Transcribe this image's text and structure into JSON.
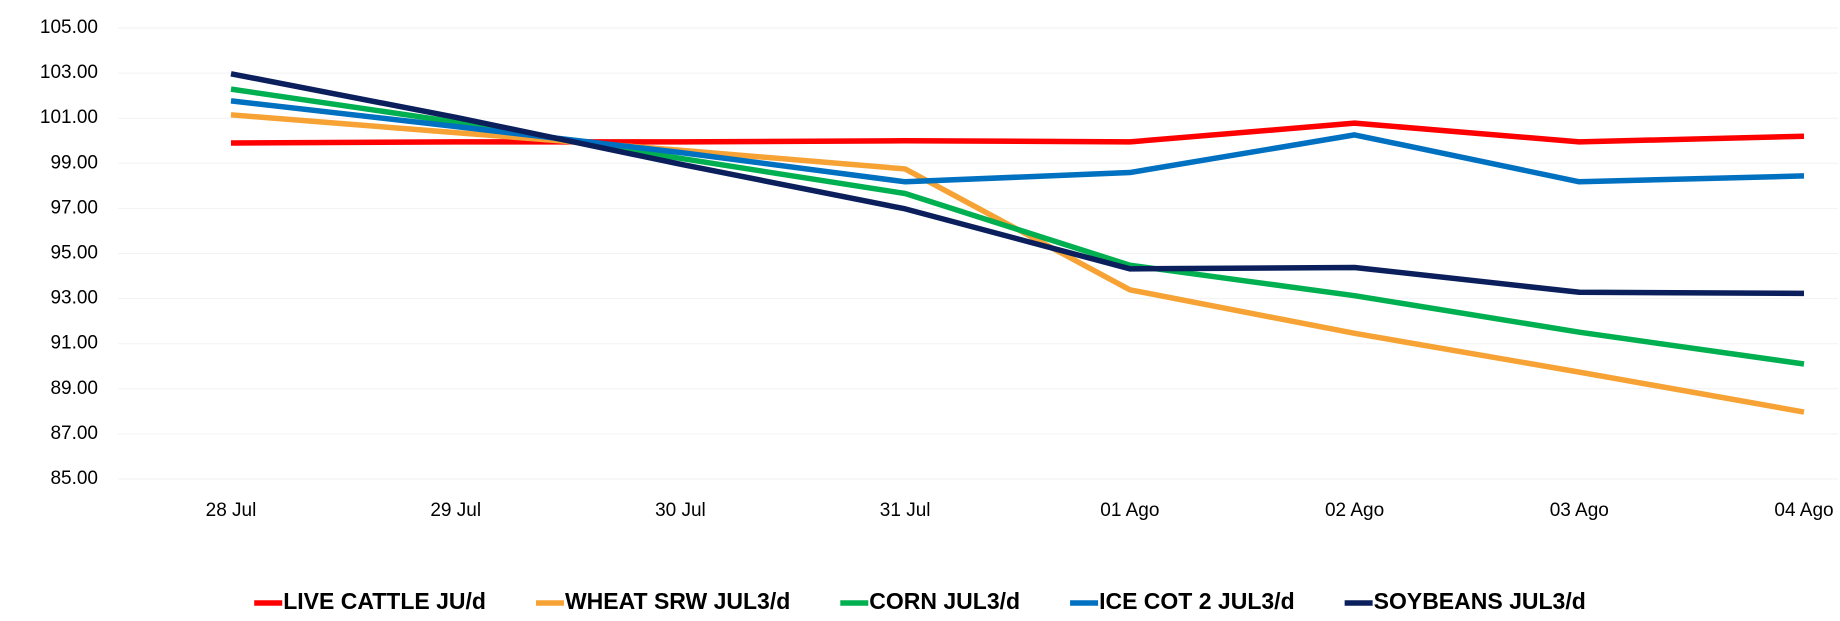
{
  "chart_data": {
    "type": "line",
    "categories": [
      "28 Jul",
      "29 Jul",
      "30 Jul",
      "31 Jul",
      "01 Ago",
      "02 Ago",
      "03 Ago",
      "04 Ago"
    ],
    "series": [
      {
        "name": "LIVE CATTLE JU/d",
        "color": "#ff0000",
        "values": [
          99.9,
          99.95,
          99.95,
          100.0,
          99.95,
          100.78,
          99.95,
          100.2
        ]
      },
      {
        "name": "WHEAT SRW JUL3/d",
        "color": "#f7a234",
        "values": [
          101.15,
          100.36,
          99.58,
          98.75,
          93.39,
          91.46,
          89.74,
          87.97
        ]
      },
      {
        "name": "CORN JUL3/d",
        "color": "#00b050",
        "values": [
          102.29,
          100.83,
          99.22,
          97.66,
          94.48,
          93.13,
          91.51,
          90.1
        ]
      },
      {
        "name": "ICE COT 2 JUL3/d",
        "color": "#0070c0",
        "values": [
          101.77,
          100.63,
          99.48,
          98.18,
          98.59,
          100.26,
          98.18,
          98.44
        ]
      },
      {
        "name": "SOYBEANS JUL3/d",
        "color": "#0b1f5c",
        "values": [
          102.97,
          101.04,
          98.96,
          96.98,
          94.32,
          94.38,
          93.28,
          93.23
        ]
      }
    ],
    "ylim": [
      85,
      105
    ],
    "yticks": [
      {
        "value": 85,
        "label": "85.00"
      },
      {
        "value": 87,
        "label": "87.00"
      },
      {
        "value": 89,
        "label": "89.00"
      },
      {
        "value": 91,
        "label": "91.00"
      },
      {
        "value": 93,
        "label": "93.00"
      },
      {
        "value": 95,
        "label": "95.00"
      },
      {
        "value": 97,
        "label": "97.00"
      },
      {
        "value": 99,
        "label": "99.00"
      },
      {
        "value": 101,
        "label": "101.00"
      },
      {
        "value": 103,
        "label": "103.00"
      },
      {
        "value": 105,
        "label": "105.00"
      }
    ],
    "grid": true,
    "legend": "bottom"
  }
}
